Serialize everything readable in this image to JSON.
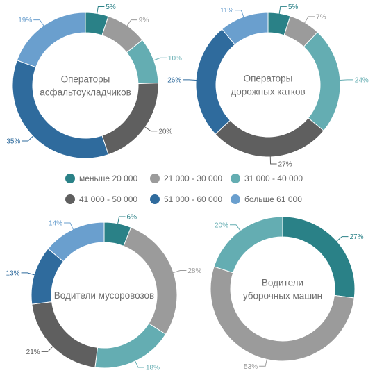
{
  "colors": {
    "band1": "#2a8187",
    "band2": "#9b9b9b",
    "band3": "#64adb2",
    "band4": "#5f5f5f",
    "band5": "#2f6b9d",
    "band6": "#6a9fce",
    "center_text": "#6e6e6e"
  },
  "legend": [
    {
      "label": "меньше 20 000",
      "color": "#2a8187"
    },
    {
      "label": "21 000 - 30 000",
      "color": "#9b9b9b"
    },
    {
      "label": "31 000 - 40 000",
      "color": "#64adb2"
    },
    {
      "label": "41 000 - 50 000",
      "color": "#5f5f5f"
    },
    {
      "label": "51 000 - 60 000",
      "color": "#2f6b9d"
    },
    {
      "label": "больше 61 000",
      "color": "#6a9fce"
    }
  ],
  "chart_data": [
    {
      "type": "pie",
      "title": "Операторы асфальтоукладчиков",
      "title_lines": [
        "Операторы",
        "асфальтоукладчиков"
      ],
      "categories": [
        "меньше 20 000",
        "21 000 - 30 000",
        "31 000 - 40 000",
        "41 000 - 50 000",
        "51 000 - 60 000",
        "больше 61 000"
      ],
      "values": [
        5,
        9,
        10,
        20,
        35,
        19
      ],
      "labels": [
        "5%",
        "9%",
        "10%",
        "20%",
        "35%",
        "19%"
      ]
    },
    {
      "type": "pie",
      "title": "Операторы дорожных катков",
      "title_lines": [
        "Операторы",
        "дорожных катков"
      ],
      "categories": [
        "меньше 20 000",
        "21 000 - 30 000",
        "31 000 - 40 000",
        "41 000 - 50 000",
        "51 000 - 60 000",
        "больше 61 000"
      ],
      "values": [
        5,
        7,
        24,
        27,
        26,
        11
      ],
      "labels": [
        "5%",
        "7%",
        "24%",
        "27%",
        "26%",
        "11%"
      ]
    },
    {
      "type": "pie",
      "title": "Водители мусоровозов",
      "title_lines": [
        "Водители мусоровозов"
      ],
      "categories": [
        "меньше 20 000",
        "21 000 - 30 000",
        "31 000 - 40 000",
        "41 000 - 50 000",
        "51 000 - 60 000",
        "больше 61 000"
      ],
      "values": [
        6,
        28,
        18,
        21,
        13,
        14
      ],
      "labels": [
        "6%",
        "28%",
        "18%",
        "21%",
        "13%",
        "14%"
      ]
    },
    {
      "type": "pie",
      "title": "Водители уборочных машин",
      "title_lines": [
        "Водители",
        "уборочных машин"
      ],
      "categories": [
        "меньше 20 000",
        "21 000 - 30 000",
        "31 000 - 40 000"
      ],
      "values": [
        27,
        53,
        20
      ],
      "labels": [
        "27%",
        "53%",
        "20%"
      ]
    }
  ]
}
